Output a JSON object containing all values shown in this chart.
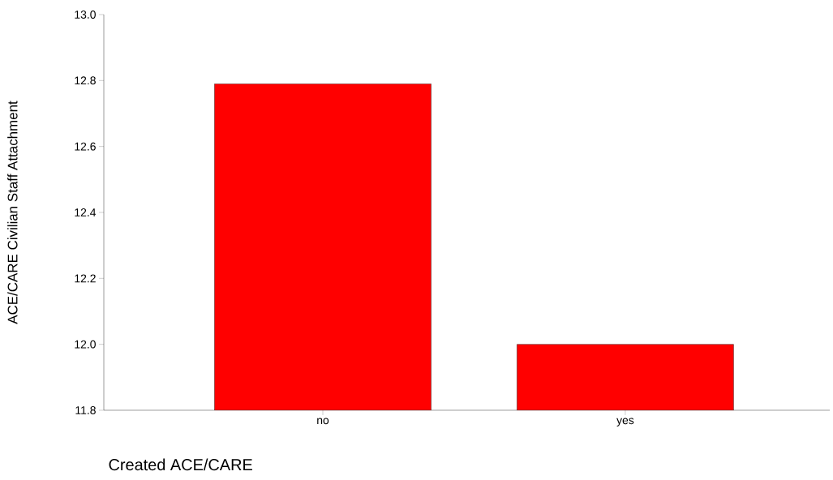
{
  "chart_data": {
    "type": "bar",
    "categories": [
      "no",
      "yes"
    ],
    "values": [
      12.79,
      12.0
    ],
    "color": "#ff0000",
    "xlabel": "Created ACE/CARE",
    "ylabel": "ACE/CARE Civilian Staff Attachment",
    "ylim": [
      11.8,
      13.0
    ],
    "yticks": [
      11.8,
      {
        "value": 12.0,
        "label": "12.0"
      },
      12.2,
      12.4,
      12.6,
      12.8,
      {
        "value": 13.0,
        "label": "13.0"
      }
    ],
    "grid": false
  }
}
